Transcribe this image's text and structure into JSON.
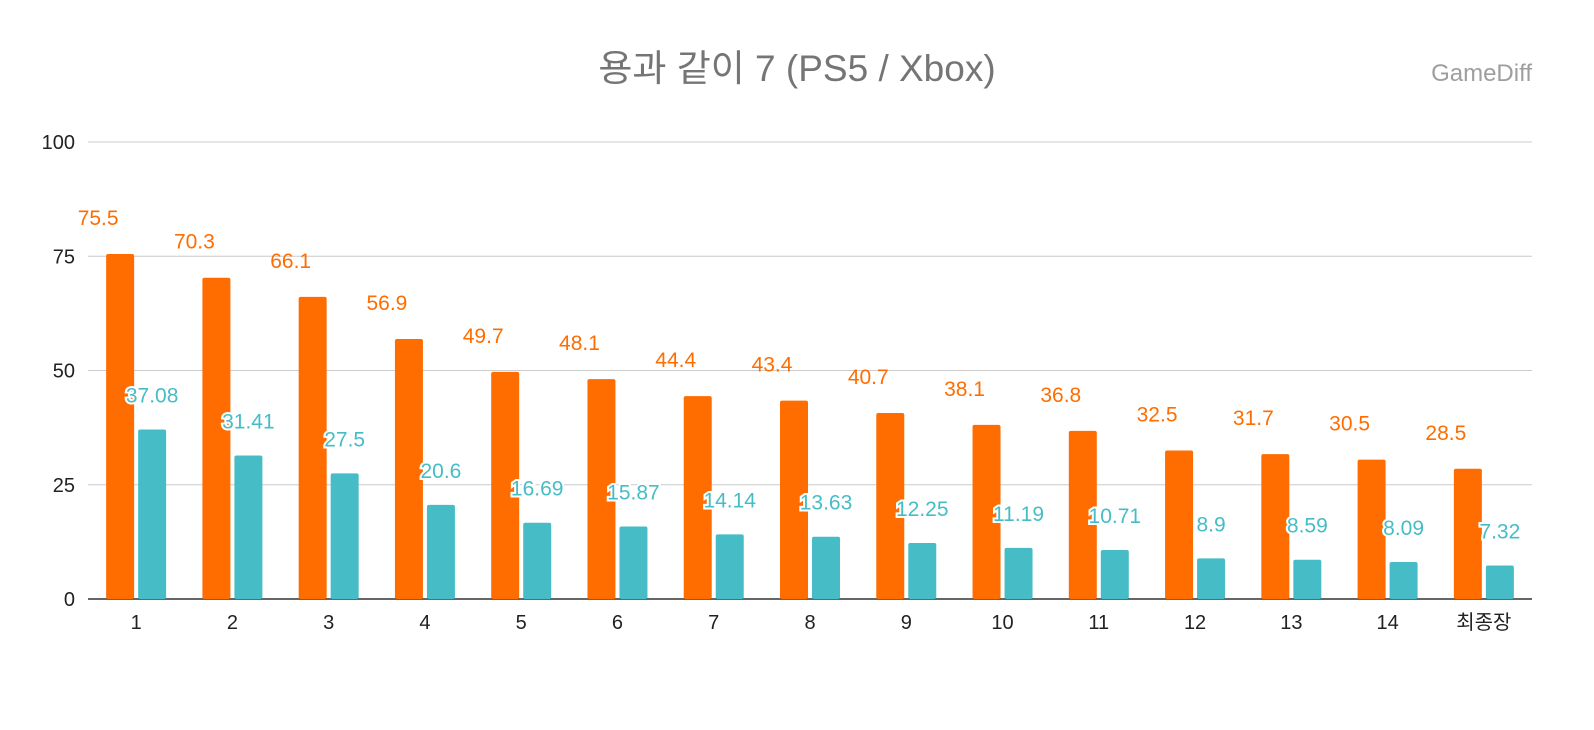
{
  "chart_data": {
    "type": "bar",
    "title": "용과 같이 7 (PS5 / Xbox)",
    "watermark": "GameDiff",
    "categories": [
      "1",
      "2",
      "3",
      "4",
      "5",
      "6",
      "7",
      "8",
      "9",
      "10",
      "11",
      "12",
      "13",
      "14",
      "최종장"
    ],
    "series": [
      {
        "name": "PS5",
        "color": "#ff6d01",
        "values": [
          75.5,
          70.3,
          66.1,
          56.9,
          49.7,
          48.1,
          44.4,
          43.4,
          40.7,
          38.1,
          36.8,
          32.5,
          31.7,
          30.5,
          28.5
        ]
      },
      {
        "name": "Xbox",
        "color": "#46bdc6",
        "values": [
          37.08,
          31.41,
          27.5,
          20.6,
          16.69,
          15.87,
          14.14,
          13.63,
          12.25,
          11.19,
          10.71,
          8.9,
          8.59,
          8.09,
          7.32
        ]
      }
    ],
    "y_ticks": [
      0,
      25,
      50,
      75,
      100
    ],
    "ylim": [
      0,
      100
    ],
    "xlabel": "",
    "ylabel": "",
    "grid": true,
    "legend": "none"
  }
}
